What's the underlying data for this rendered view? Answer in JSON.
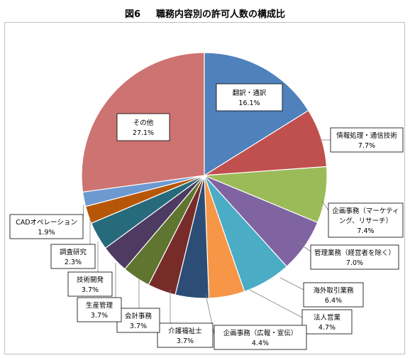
{
  "title": {
    "figure": "図6",
    "text": "職務内容別の許可人数の構成比"
  },
  "chart_data": {
    "type": "pie",
    "slices": [
      {
        "label": "翻訳・通訳",
        "value": 16.1,
        "value_label": "16.1%",
        "color": "#4f81bd"
      },
      {
        "label": "情報処理・通信技術",
        "value": 7.7,
        "value_label": "7.7%",
        "color": "#c0504d"
      },
      {
        "label": "企画事務（マーケティング、リサーチ）",
        "label_lines": [
          "企画事務（マーケティ",
          "ング、リサーチ）"
        ],
        "value": 7.4,
        "value_label": "7.4%",
        "color": "#9bbb59"
      },
      {
        "label": "管理業務（経営者を除く）",
        "value": 7.0,
        "value_label": "7.0%",
        "color": "#8064a2"
      },
      {
        "label": "海外取引業務",
        "value": 6.4,
        "value_label": "6.4%",
        "color": "#4bacc6"
      },
      {
        "label": "法人営業",
        "value": 4.7,
        "value_label": "4.7%",
        "color": "#f79646"
      },
      {
        "label": "企画事務（広報・宣伝）",
        "value": 4.4,
        "value_label": "4.4%",
        "color": "#2c4d75"
      },
      {
        "label": "介護福祉士",
        "value": 3.7,
        "value_label": "3.7%",
        "color": "#772c2a"
      },
      {
        "label": "会計事務",
        "value": 3.7,
        "value_label": "3.7%",
        "color": "#5f7530"
      },
      {
        "label": "生産管理",
        "value": 3.7,
        "value_label": "3.7%",
        "color": "#4d3b62"
      },
      {
        "label": "技術開発",
        "value": 3.7,
        "value_label": "3.7%",
        "color": "#276a7c"
      },
      {
        "label": "調査研究",
        "value": 2.3,
        "value_label": "2.3%",
        "color": "#b65708"
      },
      {
        "label": "CADオペレーション",
        "value": 1.9,
        "value_label": "1.9%",
        "color": "#6d99d1"
      },
      {
        "label": "その他",
        "value": 27.1,
        "value_label": "27.1%",
        "color": "#cd7371"
      }
    ]
  }
}
